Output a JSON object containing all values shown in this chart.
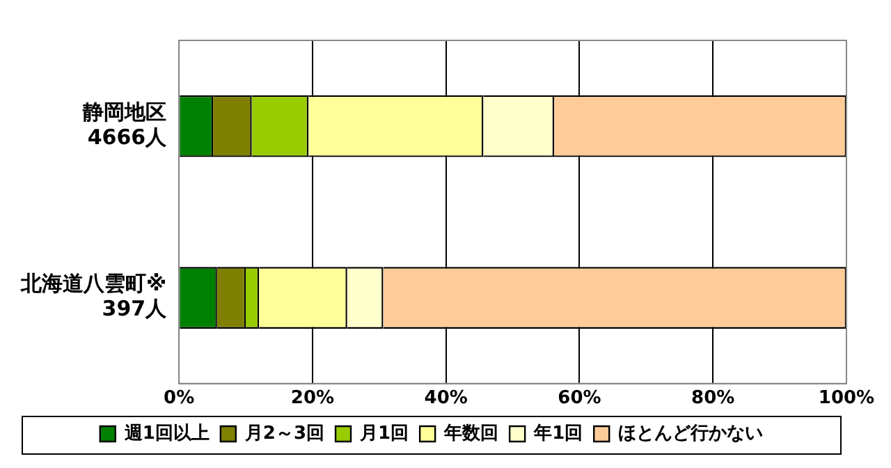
{
  "chart_data": {
    "type": "bar",
    "orientation": "horizontal",
    "stacked": true,
    "categories": [
      "静岡地区\n4666人",
      "北海道八雲町※\n397人"
    ],
    "series": [
      {
        "name": "週1回以上",
        "color": "#008000",
        "values": [
          5.1,
          5.7
        ]
      },
      {
        "name": "月2～3回",
        "color": "#808000",
        "values": [
          5.8,
          4.3
        ]
      },
      {
        "name": "月1回",
        "color": "#99cc00",
        "values": [
          8.5,
          2.0
        ]
      },
      {
        "name": "年数回",
        "color": "#ffff99",
        "values": [
          26.2,
          13.2
        ]
      },
      {
        "name": "年1回",
        "color": "#ffffcc",
        "values": [
          10.6,
          5.4
        ]
      },
      {
        "name": "ほとんど行かない",
        "color": "#ffcc99",
        "values": [
          43.8,
          69.4
        ]
      }
    ],
    "xlim": [
      0,
      100
    ],
    "xticks": [
      {
        "value": 0,
        "label": "0%"
      },
      {
        "value": 20,
        "label": "20%"
      },
      {
        "value": 40,
        "label": "40%"
      },
      {
        "value": 60,
        "label": "60%"
      },
      {
        "value": 80,
        "label": "80%"
      },
      {
        "value": 100,
        "label": "100%"
      }
    ],
    "grid": "x",
    "legend": "bottom"
  }
}
